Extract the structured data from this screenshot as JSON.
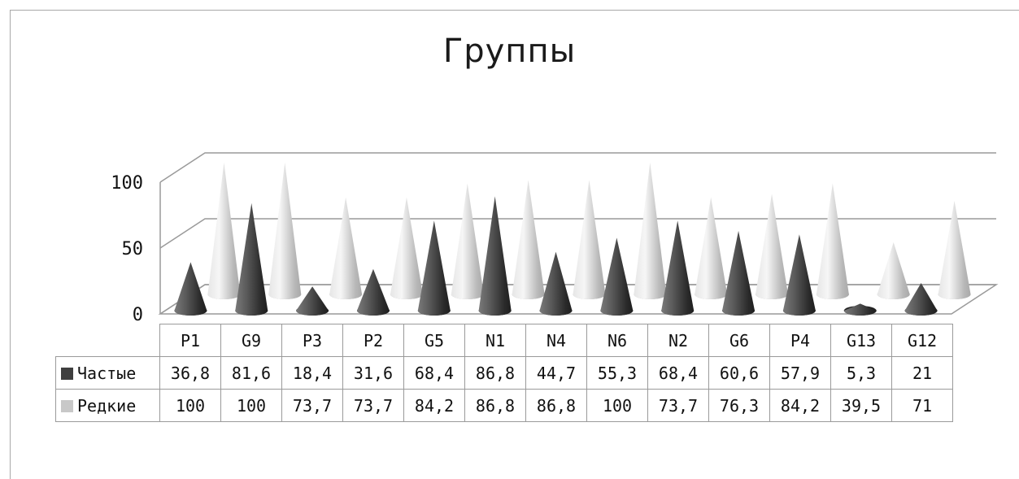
{
  "chart_data": {
    "type": "bar",
    "title": "Группы",
    "categories": [
      "P1",
      "G9",
      "P3",
      "P2",
      "G5",
      "N1",
      "N4",
      "N6",
      "N2",
      "G6",
      "P4",
      "G13",
      "G12"
    ],
    "series": [
      {
        "name": "Частые",
        "values": [
          36.8,
          81.6,
          18.4,
          31.6,
          68.4,
          86.8,
          44.7,
          55.3,
          68.4,
          60.6,
          57.9,
          5.3,
          21
        ],
        "labels": [
          "36,8",
          "81,6",
          "18,4",
          "31,6",
          "68,4",
          "86,8",
          "44,7",
          "55,3",
          "68,4",
          "60,6",
          "57,9",
          "5,3",
          "21"
        ],
        "color": "#3f3f3f"
      },
      {
        "name": "Редкие",
        "values": [
          100,
          100,
          73.7,
          73.7,
          84.2,
          86.8,
          86.8,
          100,
          73.7,
          76.3,
          84.2,
          39.5,
          71
        ],
        "labels": [
          "100",
          "100",
          "73,7",
          "73,7",
          "84,2",
          "86,8",
          "86,8",
          "100",
          "73,7",
          "76,3",
          "84,2",
          "39,5",
          "71"
        ],
        "color": "#c8c8c8"
      }
    ],
    "yticks": [
      "0",
      "50",
      "100"
    ],
    "ylim": [
      0,
      100
    ],
    "shape": "cone",
    "grid": true,
    "legend": "data-table"
  }
}
